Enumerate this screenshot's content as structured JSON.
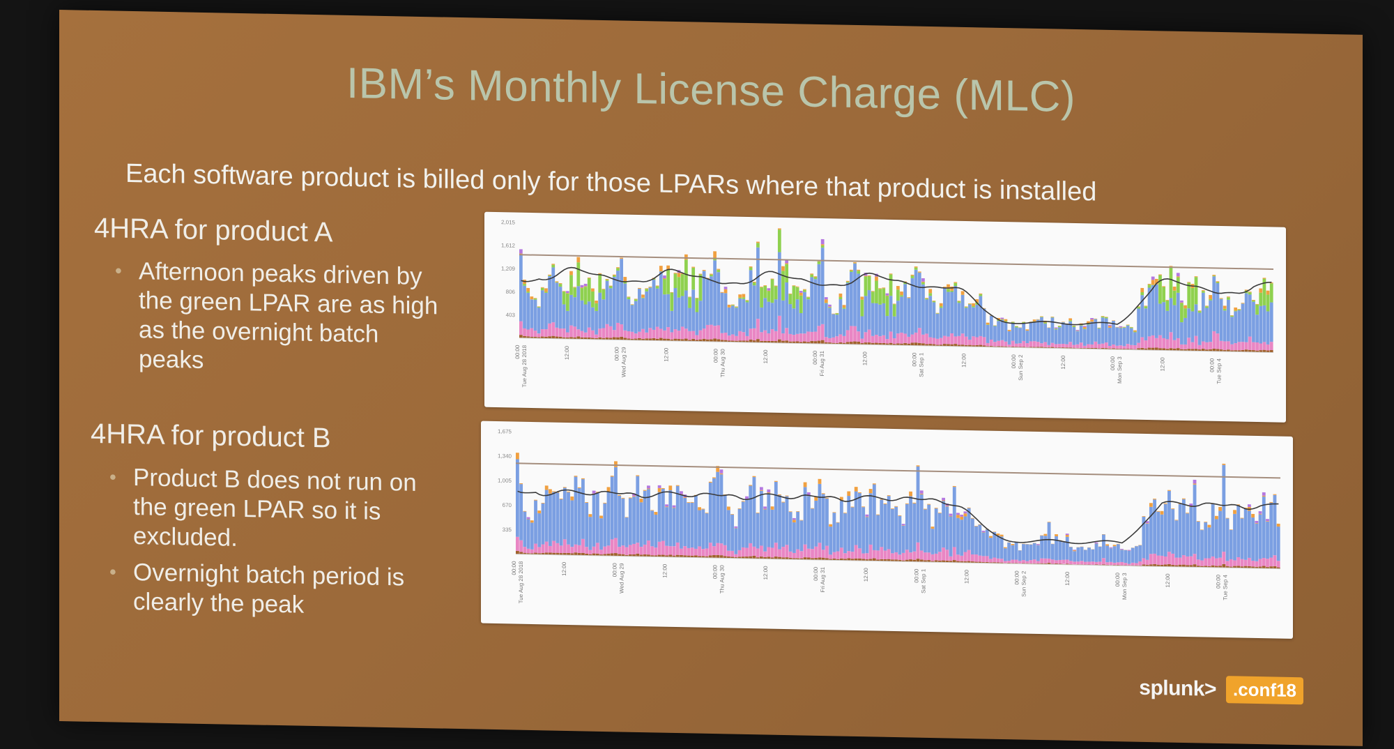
{
  "slide": {
    "title": "IBM’s Monthly License Charge (MLC)",
    "subtitle": "Each software product is billed only for those LPARs where that product is installed"
  },
  "sections": [
    {
      "heading": "4HRA for product A",
      "bullets": [
        "Afternoon peaks driven by the green LPAR are as high as the overnight batch peaks"
      ]
    },
    {
      "heading": "4HRA for product B",
      "bullets": [
        "Product B does not run on the green LPAR so it is excluded.",
        "Overnight batch period is clearly the peak"
      ]
    }
  ],
  "branding": {
    "logo_text": "splunk>",
    "badge_text": ".conf18"
  },
  "colors": {
    "blue": "#7b9fe2",
    "green": "#8fd14f",
    "pink": "#e986c4",
    "orange": "#f0a040",
    "purple": "#b478e0",
    "brown": "#a0622d",
    "line": "#3a3a3a",
    "limit": "#a58e7e"
  },
  "chart_data": [
    {
      "type": "bar",
      "stacked": true,
      "overlay": "line",
      "yticks": [
        "403",
        "806",
        "1,209",
        "1,612",
        "2,015"
      ],
      "ylim": [
        0,
        2015
      ],
      "limit_value": 1450,
      "xticks": [
        {
          "label": "00:00",
          "sub": "Tue Aug 28 2018"
        },
        {
          "label": "12:00",
          "sub": ""
        },
        {
          "label": "00:00",
          "sub": "Wed Aug 29"
        },
        {
          "label": "12:00",
          "sub": ""
        },
        {
          "label": "00:00",
          "sub": "Thu Aug 30"
        },
        {
          "label": "12:00",
          "sub": ""
        },
        {
          "label": "00:00",
          "sub": "Fri Aug 31"
        },
        {
          "label": "12:00",
          "sub": ""
        },
        {
          "label": "00:00",
          "sub": "Sat Sep 1"
        },
        {
          "label": "12:00",
          "sub": ""
        },
        {
          "label": "00:00",
          "sub": "Sun Sep 2"
        },
        {
          "label": "12:00",
          "sub": ""
        },
        {
          "label": "00:00",
          "sub": "Mon Sep 3"
        },
        {
          "label": "12:00",
          "sub": ""
        },
        {
          "label": "00:00",
          "sub": "Tue Sep 4"
        }
      ],
      "days": 7.6,
      "day_profile": [
        {
          "h": 0,
          "v": 1300
        },
        {
          "h": 2,
          "v": 900
        },
        {
          "h": 4,
          "v": 700
        },
        {
          "h": 6,
          "v": 950
        },
        {
          "h": 9,
          "v": 1200
        },
        {
          "h": 12,
          "v": 1100
        },
        {
          "h": 15,
          "v": 1350
        },
        {
          "h": 18,
          "v": 950
        },
        {
          "h": 21,
          "v": 900
        },
        {
          "h": 24,
          "v": 1300
        }
      ],
      "weekend_days": [
        4.4,
        6.2
      ],
      "weekend_level": 420,
      "green_share": 0.28,
      "series": [
        {
          "name": "",
          "color_key": "blue"
        },
        {
          "name": "",
          "color_key": "green"
        },
        {
          "name": "",
          "color_key": "pink"
        },
        {
          "name": "",
          "color_key": "brown"
        },
        {
          "name": "",
          "color_key": "orange"
        },
        {
          "name": "",
          "color_key": "purple"
        }
      ],
      "xlabel": "",
      "ylabel": ""
    },
    {
      "type": "bar",
      "stacked": true,
      "overlay": "line",
      "yticks": [
        "335",
        "670",
        "1,005",
        "1,340",
        "1,675"
      ],
      "ylim": [
        0,
        1675
      ],
      "limit_value": 1240,
      "xticks": [
        {
          "label": "00:00",
          "sub": "Tue Aug 28 2018"
        },
        {
          "label": "12:00",
          "sub": ""
        },
        {
          "label": "00:00",
          "sub": "Wed Aug 29"
        },
        {
          "label": "12:00",
          "sub": ""
        },
        {
          "label": "00:00",
          "sub": "Thu Aug 30"
        },
        {
          "label": "12:00",
          "sub": ""
        },
        {
          "label": "00:00",
          "sub": "Fri Aug 31"
        },
        {
          "label": "12:00",
          "sub": ""
        },
        {
          "label": "00:00",
          "sub": "Sat Sep 1"
        },
        {
          "label": "12:00",
          "sub": ""
        },
        {
          "label": "00:00",
          "sub": "Sun Sep 2"
        },
        {
          "label": "12:00",
          "sub": ""
        },
        {
          "label": "00:00",
          "sub": "Mon Sep 3"
        },
        {
          "label": "12:00",
          "sub": ""
        },
        {
          "label": "00:00",
          "sub": "Tue Sep 4"
        }
      ],
      "days": 7.6,
      "day_profile": [
        {
          "h": 0,
          "v": 1150
        },
        {
          "h": 2,
          "v": 750
        },
        {
          "h": 4,
          "v": 600
        },
        {
          "h": 6,
          "v": 780
        },
        {
          "h": 9,
          "v": 860
        },
        {
          "h": 12,
          "v": 820
        },
        {
          "h": 15,
          "v": 900
        },
        {
          "h": 18,
          "v": 720
        },
        {
          "h": 21,
          "v": 700
        },
        {
          "h": 24,
          "v": 1150
        }
      ],
      "weekend_days": [
        4.4,
        6.2
      ],
      "weekend_level": 300,
      "green_share": 0,
      "series": [
        {
          "name": "",
          "color_key": "blue"
        },
        {
          "name": "",
          "color_key": "pink"
        },
        {
          "name": "",
          "color_key": "brown"
        },
        {
          "name": "",
          "color_key": "orange"
        },
        {
          "name": "",
          "color_key": "purple"
        }
      ],
      "xlabel": "",
      "ylabel": ""
    }
  ]
}
